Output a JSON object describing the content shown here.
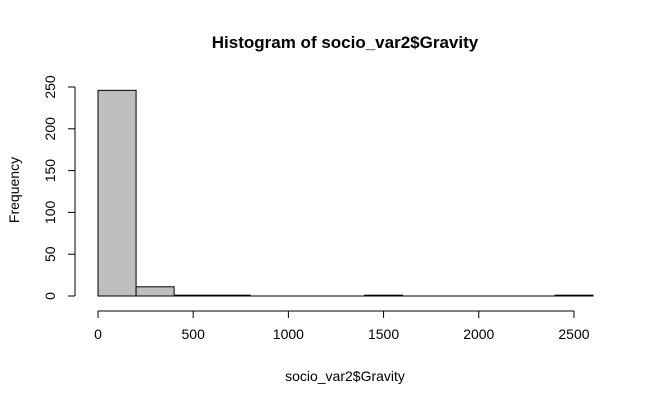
{
  "chart_data": {
    "type": "bar",
    "title": "Histogram of socio_var2$Gravity",
    "xlabel": "socio_var2$Gravity",
    "ylabel": "Frequency",
    "bins": [
      {
        "x0": 0,
        "x1": 200,
        "count": 246
      },
      {
        "x0": 200,
        "x1": 400,
        "count": 11
      },
      {
        "x0": 400,
        "x1": 600,
        "count": 1
      },
      {
        "x0": 600,
        "x1": 800,
        "count": 1
      },
      {
        "x0": 800,
        "x1": 1000,
        "count": 0
      },
      {
        "x0": 1000,
        "x1": 1200,
        "count": 0
      },
      {
        "x0": 1200,
        "x1": 1400,
        "count": 0
      },
      {
        "x0": 1400,
        "x1": 1600,
        "count": 1
      },
      {
        "x0": 1600,
        "x1": 1800,
        "count": 0
      },
      {
        "x0": 1800,
        "x1": 2000,
        "count": 0
      },
      {
        "x0": 2000,
        "x1": 2200,
        "count": 0
      },
      {
        "x0": 2200,
        "x1": 2400,
        "count": 0
      },
      {
        "x0": 2400,
        "x1": 2600,
        "count": 1
      }
    ],
    "xticks": [
      0,
      500,
      1000,
      1500,
      2000,
      2500
    ],
    "yticks": [
      0,
      50,
      100,
      150,
      200,
      250
    ],
    "xlim": [
      0,
      2600
    ],
    "ylim": [
      0,
      250
    ],
    "bar_color": "#bebebe",
    "edge_color": "#000000",
    "grid": false,
    "legend": "none"
  }
}
